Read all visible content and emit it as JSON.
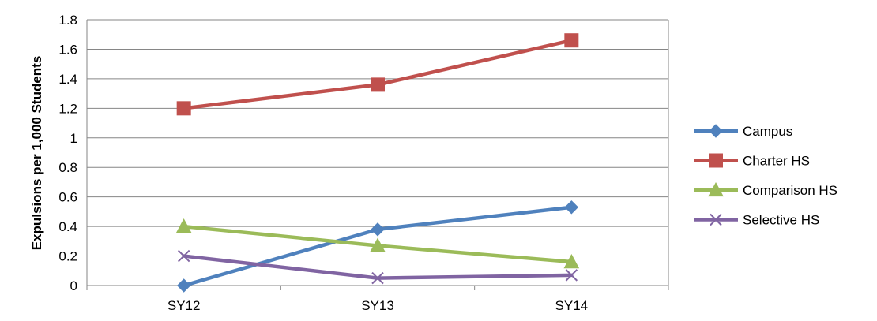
{
  "chart_data": {
    "type": "line",
    "categories": [
      "SY12",
      "SY13",
      "SY14"
    ],
    "series": [
      {
        "name": "Campus",
        "values": [
          0.0,
          0.38,
          0.53
        ],
        "color": "#4F81BD",
        "marker": "diamond"
      },
      {
        "name": "Charter HS",
        "values": [
          1.2,
          1.36,
          1.66
        ],
        "color": "#C0504D",
        "marker": "square"
      },
      {
        "name": "Comparison HS",
        "values": [
          0.4,
          0.27,
          0.16
        ],
        "color": "#9BBB59",
        "marker": "triangle"
      },
      {
        "name": "Selective HS",
        "values": [
          0.2,
          0.05,
          0.07
        ],
        "color": "#8064A2",
        "marker": "x"
      }
    ],
    "title": "",
    "xlabel": "",
    "ylabel": "Expulsions per 1,000 Students",
    "ylim": [
      0,
      1.8
    ],
    "yticks": [
      "0",
      "0.2",
      "0.4",
      "0.6",
      "0.8",
      "1",
      "1.2",
      "1.4",
      "1.6",
      "1.8"
    ],
    "grid": true,
    "legend_position": "right"
  }
}
